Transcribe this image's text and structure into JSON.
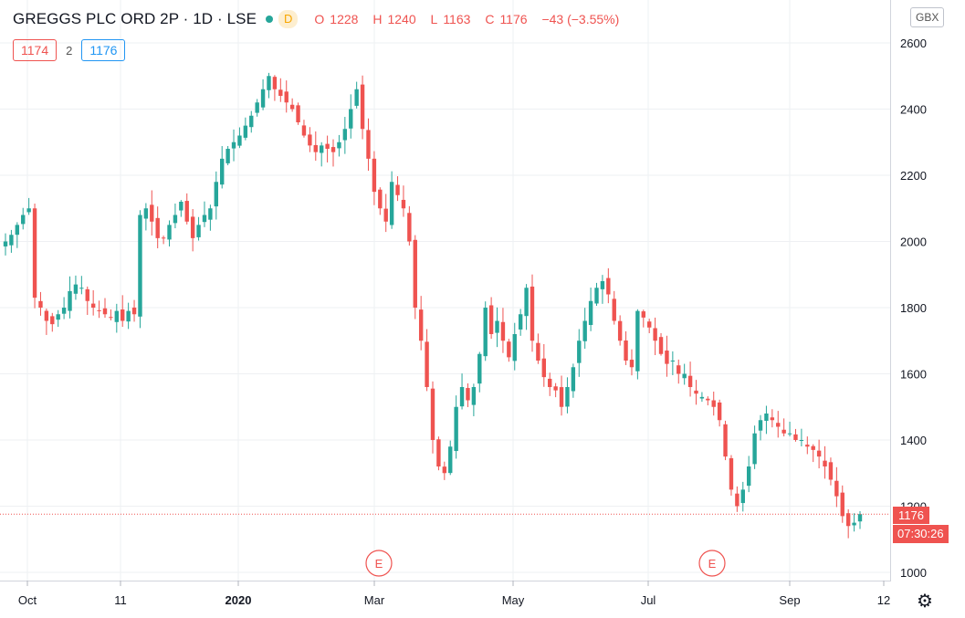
{
  "header": {
    "symbol": "GREGGS PLC ORD 2P · 1D · LSE",
    "badge": "D",
    "open_label": "O",
    "open": "1228",
    "high_label": "H",
    "high": "1240",
    "low_label": "L",
    "low": "1163",
    "close_label": "C",
    "close": "1176",
    "change": "−43 (−3.55%)"
  },
  "quote": {
    "bid": "1174",
    "spread": "2",
    "ask": "1176"
  },
  "currency": "GBX",
  "last_price_label": "1176",
  "countdown": "07:30:26",
  "colors": {
    "up": "#26a69a",
    "down": "#ef5350",
    "grid": "#eef0f3",
    "axis": "#131722"
  },
  "chart_data": {
    "type": "candlestick",
    "ylim": [
      960,
      2640
    ],
    "y_ticks": [
      "2600",
      "2400",
      "2200",
      "2000",
      "1800",
      "1600",
      "1400",
      "1200",
      "1000"
    ],
    "x_ticks": [
      "Oct",
      "11",
      "2020",
      "Mar",
      "May",
      "Jul",
      "Sep",
      "12"
    ],
    "event_markers": [
      "E",
      "E"
    ],
    "last_price": 1176,
    "approx_closes": [
      2000,
      2020,
      2050,
      2080,
      2100,
      1830,
      1800,
      1760,
      1750,
      1780,
      1800,
      1850,
      1870,
      1860,
      1820,
      1800,
      1790,
      1780,
      1770,
      1790,
      1760,
      1790,
      1780,
      2080,
      2100,
      2060,
      2010,
      2010,
      2050,
      2080,
      2120,
      2060,
      2010,
      2050,
      2080,
      2100,
      2180,
      2250,
      2280,
      2300,
      2320,
      2350,
      2380,
      2420,
      2460,
      2500,
      2460,
      2440,
      2420,
      2400,
      2360,
      2320,
      2290,
      2270,
      2290,
      2280,
      2270,
      2300,
      2340,
      2400,
      2460,
      2340,
      2250,
      2150,
      2100,
      2060,
      2180,
      2140,
      2100,
      2000,
      1800,
      1700,
      1560,
      1400,
      1320,
      1300,
      1380,
      1500,
      1560,
      1520,
      1560,
      1660,
      1800,
      1720,
      1760,
      1700,
      1650,
      1720,
      1780,
      1860,
      1700,
      1640,
      1590,
      1560,
      1550,
      1500,
      1560,
      1620,
      1700,
      1760,
      1820,
      1860,
      1880,
      1840,
      1760,
      1700,
      1640,
      1620,
      1790,
      1770,
      1740,
      1700,
      1660,
      1630,
      1640,
      1600,
      1600,
      1560,
      1540,
      1530,
      1520,
      1500,
      1460,
      1350,
      1250,
      1200,
      1250,
      1320,
      1420,
      1460,
      1480,
      1460,
      1440,
      1420,
      1420,
      1400,
      1400,
      1380,
      1370,
      1350,
      1320,
      1280,
      1230,
      1170,
      1140,
      1150,
      1176
    ]
  }
}
